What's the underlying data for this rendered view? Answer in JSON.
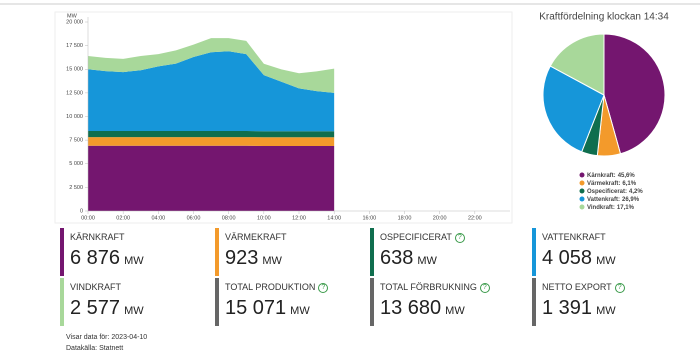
{
  "chart_data": [
    {
      "type": "stacked-area",
      "ylabel": "MW",
      "x": [
        0,
        1,
        2,
        3,
        4,
        5,
        6,
        7,
        8,
        9,
        10,
        11,
        12,
        13,
        14
      ],
      "xlim": [
        0,
        24
      ],
      "xticks": [
        {
          "value": 0,
          "label": "00:00"
        },
        {
          "value": 2,
          "label": "02:00"
        },
        {
          "value": 4,
          "label": "04:00"
        },
        {
          "value": 6,
          "label": "06:00"
        },
        {
          "value": 8,
          "label": "08:00"
        },
        {
          "value": 10,
          "label": "10:00"
        },
        {
          "value": 12,
          "label": "12:00"
        },
        {
          "value": 14,
          "label": "14:00"
        },
        {
          "value": 16,
          "label": "16:00"
        },
        {
          "value": 18,
          "label": "18:00"
        },
        {
          "value": 20,
          "label": "20:00"
        },
        {
          "value": 22,
          "label": "22:00"
        }
      ],
      "ylim": [
        0,
        20000
      ],
      "yticks": [
        0,
        {
          "value": 2500,
          "label": "2 500"
        },
        {
          "value": 5000,
          "label": "5 000"
        },
        {
          "value": 7500,
          "label": "7 500"
        },
        {
          "value": 10000,
          "label": "10 000"
        },
        {
          "value": 12500,
          "label": "12 500"
        },
        {
          "value": 15000,
          "label": "15 000"
        },
        {
          "value": 17500,
          "label": "17 500"
        },
        {
          "value": 20000,
          "label": "20 000"
        }
      ],
      "series": [
        {
          "color": "#74166f",
          "values": [
            6900,
            6900,
            6900,
            6900,
            6900,
            6900,
            6900,
            6900,
            6900,
            6900,
            6880,
            6880,
            6880,
            6880,
            6876
          ]
        },
        {
          "color": "#f39a2b",
          "values": [
            920,
            920,
            920,
            920,
            920,
            920,
            920,
            920,
            920,
            920,
            923,
            923,
            923,
            923,
            923
          ]
        },
        {
          "color": "#0f6e4e",
          "values": [
            640,
            640,
            640,
            640,
            640,
            640,
            640,
            640,
            640,
            640,
            638,
            638,
            638,
            638,
            638
          ]
        },
        {
          "color": "#1696d9",
          "values": [
            6540,
            6340,
            6240,
            6440,
            6840,
            7140,
            7840,
            8340,
            8440,
            8140,
            5940,
            5240,
            4540,
            4240,
            4058
          ]
        },
        {
          "color": "#a8d89a",
          "values": [
            1400,
            1400,
            1400,
            1500,
            1300,
            1400,
            1300,
            1500,
            1400,
            1400,
            1200,
            1300,
            1600,
            2100,
            2577
          ]
        }
      ]
    },
    {
      "type": "pie",
      "title": "Kraftfördelning klockan 14:34",
      "categories": [
        "Kärnkraft:",
        "Värmekraft:",
        "Ospecificerat:",
        "Vattenkraft:",
        "Vindkraft:"
      ],
      "values": [
        45.6,
        6.1,
        4.2,
        26.9,
        17.1
      ],
      "value_labels": [
        "45,6%",
        "6,1%",
        "4,2%",
        "26,9%",
        "17,1%"
      ],
      "colors": [
        "#74166f",
        "#f39a2b",
        "#0f6e4e",
        "#1696d9",
        "#a8d89a"
      ]
    }
  ],
  "cards": [
    {
      "label": "KÄRNKRAFT",
      "value": "6 876",
      "unit": "MW",
      "color": "#74166f",
      "info": false
    },
    {
      "label": "VÄRMEKRAFT",
      "value": "923",
      "unit": "MW",
      "color": "#f39a2b",
      "info": false
    },
    {
      "label": "OSPECIFICERAT",
      "value": "638",
      "unit": "MW",
      "color": "#0f6e4e",
      "info": true
    },
    {
      "label": "VATTENKRAFT",
      "value": "4 058",
      "unit": "MW",
      "color": "#1696d9",
      "info": false
    },
    {
      "label": "VINDKRAFT",
      "value": "2 577",
      "unit": "MW",
      "color": "#a8d89a",
      "info": false
    },
    {
      "label": "TOTAL PRODUKTION",
      "value": "15 071",
      "unit": "MW",
      "color": "#666666",
      "info": true
    },
    {
      "label": "TOTAL FÖRBRUKNING",
      "value": "13 680",
      "unit": "MW",
      "color": "#666666",
      "info": true
    },
    {
      "label": "NETTO EXPORT",
      "value": "1 391",
      "unit": "MW",
      "color": "#666666",
      "info": true
    }
  ],
  "footer": [
    "Visar data för: 2023-04-10",
    "Datakälla: Statnett"
  ]
}
